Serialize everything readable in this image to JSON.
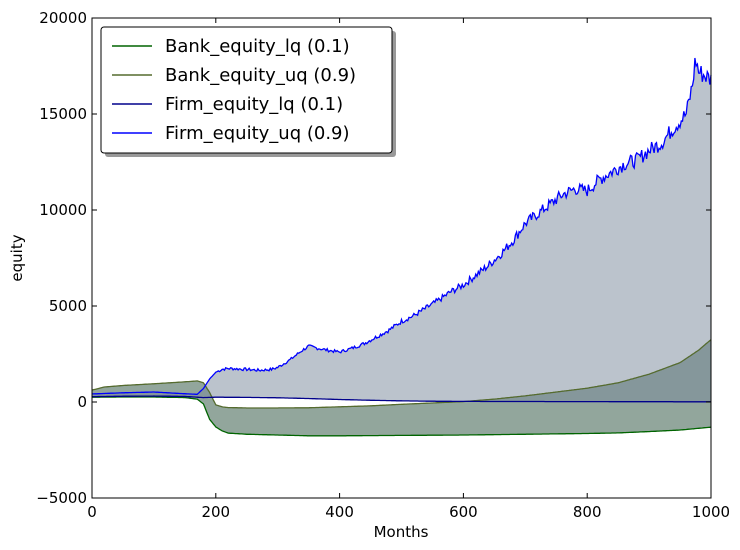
{
  "chart_data": {
    "type": "line",
    "title": "",
    "xlabel": "Months",
    "ylabel": "equity",
    "xlim": [
      0,
      1000
    ],
    "ylim": [
      -5000,
      20000
    ],
    "xticks": [
      0,
      200,
      400,
      600,
      800,
      1000
    ],
    "yticks": [
      -5000,
      0,
      5000,
      10000,
      15000,
      20000
    ],
    "xtick_labels": [
      "0",
      "200",
      "400",
      "600",
      "800",
      "1000"
    ],
    "ytick_labels": [
      "−5000",
      "0",
      "5000",
      "10000",
      "15000",
      "20000"
    ],
    "grid": false,
    "legend_position": "top-left",
    "colors": {
      "bank_lq": "#006400",
      "bank_uq": "#556b2f",
      "firm_lq": "#00008b",
      "firm_uq": "#0000ff",
      "bank_fill": "#4a6b5a",
      "firm_fill": "#778899"
    },
    "legend": [
      {
        "key": "bank_lq",
        "label": "Bank_equity_lq (0.1)"
      },
      {
        "key": "bank_uq",
        "label": "Bank_equity_uq  (0.9)"
      },
      {
        "key": "firm_lq",
        "label": "Firm_equity_lq (0.1)"
      },
      {
        "key": "firm_uq",
        "label": "Firm_equity_uq (0.9)"
      }
    ],
    "series": [
      {
        "name": "Bank_equity_lq (0.1)",
        "key": "bank_lq",
        "x": [
          0,
          50,
          100,
          150,
          170,
          180,
          190,
          200,
          210,
          220,
          250,
          300,
          350,
          400,
          500,
          600,
          700,
          800,
          850,
          900,
          950,
          1000
        ],
        "y": [
          250,
          260,
          260,
          230,
          150,
          -100,
          -900,
          -1300,
          -1500,
          -1620,
          -1680,
          -1720,
          -1760,
          -1760,
          -1740,
          -1720,
          -1680,
          -1640,
          -1610,
          -1540,
          -1460,
          -1310
        ]
      },
      {
        "name": "Bank_equity_uq  (0.9)",
        "key": "bank_uq",
        "x": [
          0,
          20,
          50,
          100,
          150,
          170,
          180,
          190,
          200,
          210,
          220,
          250,
          300,
          350,
          400,
          450,
          500,
          550,
          600,
          650,
          700,
          750,
          800,
          850,
          900,
          950,
          980,
          1000
        ],
        "y": [
          620,
          780,
          860,
          950,
          1050,
          1100,
          1000,
          500,
          -150,
          -250,
          -290,
          -310,
          -310,
          -300,
          -250,
          -200,
          -120,
          -50,
          20,
          150,
          320,
          520,
          720,
          1000,
          1450,
          2050,
          2700,
          3250
        ]
      },
      {
        "name": "Firm_equity_lq (0.1)",
        "key": "firm_lq",
        "x": [
          0,
          50,
          100,
          150,
          180,
          200,
          250,
          300,
          350,
          400,
          450,
          500,
          550,
          600,
          700,
          800,
          900,
          1000
        ],
        "y": [
          280,
          300,
          310,
          290,
          230,
          250,
          240,
          220,
          180,
          130,
          90,
          60,
          40,
          30,
          25,
          20,
          15,
          10
        ]
      },
      {
        "name": "Firm_equity_uq (0.9)",
        "key": "firm_uq",
        "x": [
          0,
          50,
          100,
          150,
          170,
          180,
          190,
          200,
          210,
          220,
          250,
          270,
          290,
          300,
          320,
          340,
          350,
          380,
          400,
          420,
          440,
          460,
          480,
          500,
          520,
          540,
          560,
          580,
          600,
          620,
          640,
          660,
          680,
          700,
          720,
          740,
          760,
          780,
          800,
          820,
          840,
          860,
          880,
          900,
          920,
          940,
          960,
          970,
          975,
          980,
          990,
          1000
        ],
        "y": [
          420,
          480,
          520,
          430,
          400,
          700,
          1200,
          1550,
          1700,
          1750,
          1700,
          1650,
          1700,
          1800,
          2200,
          2700,
          2900,
          2700,
          2600,
          2800,
          3050,
          3400,
          3750,
          4200,
          4500,
          4900,
          5300,
          5750,
          6100,
          6600,
          7100,
          7700,
          8400,
          9300,
          9800,
          10300,
          10800,
          11100,
          11000,
          11600,
          12000,
          12400,
          12600,
          13100,
          13500,
          14300,
          15000,
          16500,
          17900,
          17200,
          17000,
          16800
        ]
      }
    ],
    "fills": [
      {
        "between": [
          "bank_lq",
          "bank_uq"
        ],
        "color": "#4a6b5a",
        "opacity": 0.6
      },
      {
        "between": [
          "firm_lq",
          "firm_uq"
        ],
        "color": "#778899",
        "opacity": 0.5
      }
    ]
  }
}
